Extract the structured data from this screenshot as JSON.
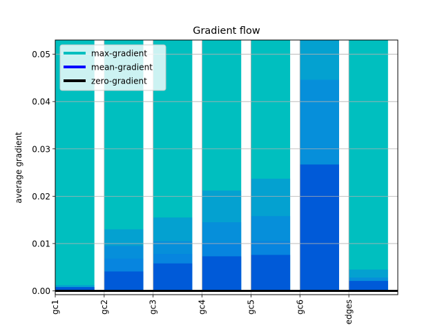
{
  "chart_data": {
    "type": "bar",
    "title": "Gradient flow",
    "xlabel": "",
    "ylabel": "average gradient",
    "categories": [
      "gc1",
      "gc2",
      "gc3",
      "gc4",
      "gc5",
      "gc6",
      "edges"
    ],
    "ylim": [
      -0.0008,
      0.053
    ],
    "xlim": [
      0,
      7
    ],
    "yticks": [
      0.0,
      0.01,
      0.02,
      0.03,
      0.04,
      0.05
    ],
    "ytick_labels": [
      "0.00",
      "0.01",
      "0.02",
      "0.03",
      "0.04",
      "0.05"
    ],
    "grid": true,
    "legend_position": "top-left",
    "series": [
      {
        "name": "max-gradient",
        "color": "#00bfbf",
        "values": [
          0.053,
          0.053,
          0.053,
          0.053,
          0.053,
          0.053,
          0.053
        ]
      },
      {
        "name": "mean-gradient",
        "color": "#0000ff",
        "values": [
          0.0008,
          0.0041,
          0.0058,
          0.0073,
          0.0076,
          0.0267,
          0.0021
        ]
      },
      {
        "name": "zero-gradient",
        "color": "#000000",
        "values": [
          0,
          0,
          0,
          0,
          0,
          0,
          0
        ]
      }
    ],
    "intermediate_layers": [
      [
        0.0012
      ],
      [
        0.013,
        0.0095,
        0.0068
      ],
      [
        0.0155,
        0.0105,
        0.0078
      ],
      [
        0.0212,
        0.0145,
        0.0102
      ],
      [
        0.0237,
        0.0158,
        0.0105
      ],
      [
        0.0531,
        0.0446
      ],
      [
        0.0045,
        0.0028
      ]
    ]
  }
}
